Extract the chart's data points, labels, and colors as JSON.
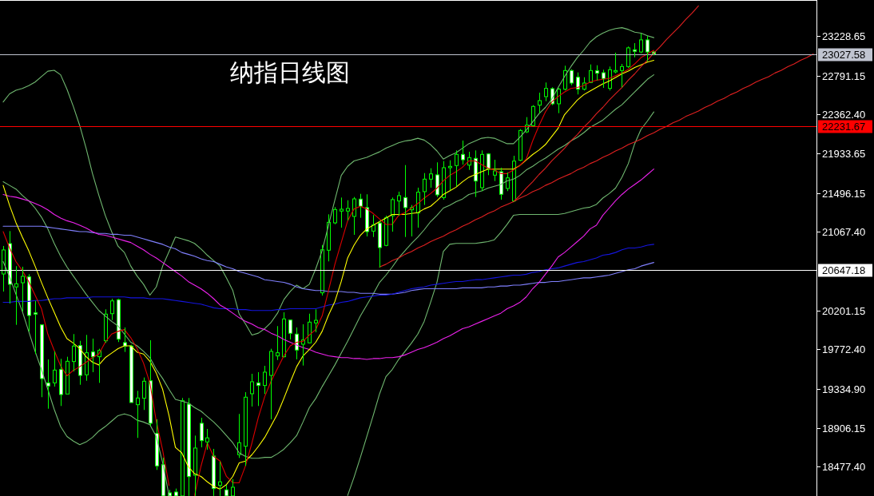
{
  "chart_data": {
    "type": "candlestick",
    "title": "纳指日线图",
    "categories": [
      null,
      null,
      null,
      null,
      null,
      null,
      null,
      null,
      null,
      null,
      null,
      null,
      null,
      null,
      null,
      null,
      null,
      null,
      null,
      null,
      null,
      null,
      null,
      null,
      null,
      null,
      null,
      null,
      null,
      null,
      null,
      null,
      null,
      null,
      null,
      null,
      null,
      null,
      null,
      null,
      null,
      null,
      null,
      null,
      null,
      null,
      null,
      null,
      null,
      null,
      null,
      null,
      null,
      null,
      null,
      null,
      null,
      null,
      null,
      null,
      null,
      null,
      null,
      null,
      null,
      null,
      null,
      null,
      null,
      null,
      null,
      null,
      null,
      null,
      null,
      null,
      null,
      null,
      null,
      null,
      null,
      null,
      null,
      null,
      null,
      null,
      null,
      null,
      null,
      null,
      null,
      null,
      null,
      null,
      null,
      null,
      null,
      null,
      null,
      null,
      null,
      null,
      null,
      null,
      null,
      null,
      null,
      null,
      null,
      null,
      null,
      null,
      null,
      null,
      null,
      null,
      null,
      null,
      null,
      null,
      null,
      null,
      null,
      null,
      null,
      null,
      null,
      null
    ],
    "color": "#00ff00",
    "ohlc": [
      [
        20603,
        20912,
        20409,
        20868
      ],
      [
        20938,
        21076,
        20277,
        20489
      ],
      [
        20460,
        20689,
        20042,
        20495
      ],
      [
        20506,
        20683,
        20189,
        20577
      ],
      [
        20571,
        20601,
        19969,
        20145
      ],
      [
        20174,
        20306,
        19720,
        20160
      ],
      [
        20042,
        20048,
        19244,
        19449
      ],
      [
        19402,
        19661,
        19117,
        19367
      ],
      [
        19402,
        19749,
        19361,
        19543
      ],
      [
        19549,
        19667,
        19147,
        19273
      ],
      [
        19279,
        19690,
        19279,
        19640
      ],
      [
        19637,
        19940,
        19528,
        19808
      ],
      [
        19813,
        19866,
        19381,
        19484
      ],
      [
        19491,
        19931,
        19425,
        19734
      ],
      [
        19743,
        19890,
        19520,
        19690
      ],
      [
        19690,
        19778,
        19402,
        19760
      ],
      [
        19866,
        20213,
        19843,
        20160
      ],
      [
        20165,
        20330,
        20095,
        20306
      ],
      [
        20319,
        20330,
        19852,
        19884
      ],
      [
        19846,
        20013,
        19743,
        19808
      ],
      [
        19808,
        19822,
        19185,
        19185
      ],
      [
        19161,
        19314,
        18795,
        19235
      ],
      [
        19232,
        19461,
        19103,
        19420
      ],
      [
        19425,
        19872,
        18927,
        18956
      ],
      [
        18844,
        19000,
        18442,
        18486
      ],
      [
        18500,
        18577,
        18155,
        18155
      ],
      [
        18189,
        18222,
        18155,
        18155
      ],
      [
        18198,
        18236,
        18155,
        18155
      ],
      [
        18155,
        19235,
        18155,
        19205
      ],
      [
        19167,
        19235,
        18155,
        18368
      ],
      [
        18383,
        18820,
        18155,
        18683
      ],
      [
        18956,
        19017,
        18691,
        18765
      ],
      [
        18750,
        18894,
        18665,
        18795
      ],
      [
        18595,
        18674,
        18155,
        18236
      ],
      [
        18271,
        18533,
        18155,
        18310
      ],
      [
        18222,
        18277,
        18155,
        18155
      ],
      [
        18155,
        18339,
        18155,
        18251
      ],
      [
        18610,
        19059,
        18574,
        18742
      ],
      [
        18703,
        19299,
        18486,
        19244
      ],
      [
        19282,
        19502,
        19141,
        19414
      ],
      [
        19402,
        19520,
        19147,
        19373
      ],
      [
        19373,
        19590,
        19279,
        19520
      ],
      [
        19484,
        19778,
        19000,
        19749
      ],
      [
        19699,
        20028,
        19654,
        19734
      ],
      [
        19690,
        20180,
        19684,
        20107
      ],
      [
        20095,
        20101,
        19881,
        19949
      ],
      [
        19940,
        20013,
        19661,
        19764
      ],
      [
        19828,
        20048,
        19593,
        19875
      ],
      [
        19843,
        20165,
        19837,
        20072
      ],
      [
        20063,
        20213,
        19960,
        20092
      ],
      [
        20395,
        20923,
        20365,
        20870
      ],
      [
        20865,
        21261,
        20742,
        21173
      ],
      [
        21167,
        21341,
        21152,
        21314
      ],
      [
        21297,
        21446,
        21114,
        21317
      ],
      [
        21297,
        21416,
        21194,
        21326
      ],
      [
        21238,
        21452,
        21035,
        21431
      ],
      [
        21429,
        21487,
        21223,
        21350
      ],
      [
        21335,
        21482,
        21017,
        21070
      ],
      [
        21076,
        21253,
        21011,
        21143
      ],
      [
        21165,
        21187,
        20674,
        20894
      ],
      [
        20918,
        21246,
        20909,
        21223
      ],
      [
        21246,
        21446,
        21070,
        21423
      ],
      [
        21408,
        21511,
        21246,
        21467
      ],
      [
        21446,
        21804,
        21011,
        21335
      ],
      [
        21311,
        21364,
        21017,
        21335
      ],
      [
        21276,
        21555,
        21114,
        21505
      ],
      [
        21511,
        21716,
        21364,
        21649
      ],
      [
        21649,
        21769,
        21555,
        21707
      ],
      [
        21696,
        21834,
        21452,
        21476
      ],
      [
        21446,
        21848,
        21423,
        21775
      ],
      [
        21775,
        21857,
        21526,
        21790
      ],
      [
        21799,
        21966,
        21570,
        21922
      ],
      [
        21922,
        22075,
        21810,
        21863
      ],
      [
        21804,
        21951,
        21751,
        21887
      ],
      [
        21878,
        21966,
        21452,
        21628
      ],
      [
        21555,
        21966,
        21517,
        21922
      ],
      [
        21927,
        21936,
        21693,
        21760
      ],
      [
        21693,
        21863,
        21628,
        21740
      ],
      [
        21731,
        21775,
        21423,
        21482
      ],
      [
        21546,
        21722,
        21517,
        21663
      ],
      [
        21408,
        21907,
        21399,
        21848
      ],
      [
        21857,
        22201,
        21848,
        22186
      ],
      [
        22171,
        22333,
        22157,
        22245
      ],
      [
        22239,
        22465,
        22231,
        22451
      ],
      [
        22465,
        22603,
        22377,
        22515
      ],
      [
        22559,
        22715,
        22509,
        22650
      ],
      [
        22647,
        22662,
        22465,
        22480
      ],
      [
        22480,
        22656,
        22377,
        22641
      ],
      [
        22641,
        22900,
        22627,
        22847
      ],
      [
        22847,
        22861,
        22685,
        22709
      ],
      [
        22773,
        22826,
        22583,
        22641
      ],
      [
        22641,
        22773,
        22627,
        22709
      ],
      [
        22715,
        22914,
        22709,
        22847
      ],
      [
        22844,
        22905,
        22738,
        22817
      ],
      [
        22823,
        22856,
        22656,
        22759
      ],
      [
        22650,
        22891,
        22627,
        22856
      ],
      [
        22832,
        23044,
        22817,
        22847
      ],
      [
        22847,
        22920,
        22662,
        22891
      ],
      [
        22891,
        23112,
        22876,
        23097
      ],
      [
        23076,
        23149,
        22993,
        23059
      ],
      [
        23052,
        23258,
        23038,
        23185
      ],
      [
        23185,
        23229,
        22949,
        23052
      ],
      [
        23052,
        23061,
        23015,
        23028
      ],
      null,
      null,
      null,
      null,
      null,
      null,
      null,
      null,
      null,
      null,
      null,
      null,
      null,
      null,
      null,
      null,
      null,
      null,
      null,
      null,
      null,
      null,
      null,
      null,
      null
    ],
    "series": [
      {
        "type": "line",
        "color": "#70b870",
        "values": [
          22500,
          22590,
          22630,
          22650,
          22680,
          22720,
          22780,
          22840,
          22850,
          22800,
          22640,
          22450,
          22240,
          21990,
          21710,
          21470,
          21250,
          21070,
          20910,
          20840,
          20690,
          20580,
          20490,
          20370,
          20460,
          20690,
          20850,
          21010,
          20990,
          20970,
          20940,
          20880,
          20810,
          20750,
          20690,
          20560,
          20420,
          20160,
          20050,
          19930,
          19950,
          20000,
          20070,
          20170,
          20320,
          20410,
          20480,
          20440,
          20490,
          20660,
          20860,
          21140,
          21420,
          21690,
          21790,
          21850,
          21870,
          21890,
          21920,
          21950,
          21990,
          22020,
          22050,
          22070,
          22080,
          22100,
          22080,
          22030,
          21960,
          21870,
          21910,
          21940,
          21990,
          22040,
          22070,
          22100,
          22110,
          22100,
          22070,
          22040,
          22040,
          22110,
          22190,
          22280,
          22370,
          22440,
          22530,
          22660,
          22780,
          22890,
          22990,
          23070,
          23160,
          23220,
          23260,
          23290,
          23310,
          23320,
          23300,
          23270,
          23260,
          23230,
          23210,
          null,
          null,
          null,
          null,
          null,
          null,
          null,
          null,
          null,
          null,
          null,
          null,
          null,
          null,
          null,
          null,
          null,
          null,
          null,
          null,
          null,
          null,
          null,
          null,
          null
        ]
      },
      {
        "type": "line",
        "color": "#70b870",
        "values": [
          21620,
          21580,
          21540,
          21470,
          21410,
          21330,
          21230,
          21100,
          20940,
          20800,
          20680,
          20580,
          20480,
          20380,
          20290,
          20200,
          20140,
          20080,
          20030,
          19940,
          19850,
          19810,
          19750,
          19680,
          19550,
          19450,
          19330,
          19220,
          19200,
          19180,
          19130,
          19090,
          19030,
          18970,
          18900,
          18820,
          18740,
          18630,
          18590,
          18570,
          18570,
          18580,
          18580,
          18620,
          18670,
          18740,
          18820,
          18970,
          19130,
          19230,
          19360,
          19480,
          19600,
          19730,
          19860,
          20000,
          20140,
          20260,
          20380,
          20510,
          20590,
          20680,
          20780,
          20860,
          20940,
          21010,
          21090,
          21180,
          21250,
          21330,
          21360,
          21400,
          21430,
          21480,
          21500,
          21520,
          21550,
          21570,
          21590,
          21630,
          21650,
          21690,
          21750,
          21790,
          21840,
          21880,
          21930,
          21980,
          22020,
          22070,
          22110,
          22160,
          22220,
          22260,
          22300,
          22360,
          22420,
          22470,
          22540,
          22610,
          22680,
          22750,
          22800,
          null,
          null,
          null,
          null,
          null,
          null,
          null,
          null,
          null,
          null,
          null,
          null,
          null,
          null,
          null,
          null,
          null,
          null,
          null,
          null,
          null,
          null,
          null,
          null,
          null
        ]
      },
      {
        "type": "line",
        "color": "#70b870",
        "values": [
          20740,
          20570,
          20380,
          20190,
          19970,
          19750,
          19550,
          19330,
          19110,
          18920,
          18810,
          18760,
          18720,
          18750,
          18800,
          18870,
          18920,
          18980,
          19040,
          19060,
          19040,
          18990,
          18970,
          18940,
          18810,
          18520,
          18160,
          null,
          null,
          null,
          null,
          null,
          null,
          null,
          null,
          null,
          null,
          null,
          null,
          null,
          null,
          null,
          null,
          null,
          null,
          null,
          null,
          null,
          null,
          null,
          null,
          null,
          null,
          null,
          18160,
          18360,
          18580,
          18810,
          19040,
          19280,
          19470,
          19550,
          19660,
          19750,
          19840,
          19940,
          20080,
          20290,
          20510,
          20850,
          20930,
          20940,
          20940,
          20940,
          20940,
          20950,
          20960,
          20980,
          21060,
          21150,
          21250,
          21260,
          21260,
          21260,
          21260,
          21260,
          21260,
          21260,
          21270,
          21290,
          21310,
          21330,
          21340,
          21370,
          21440,
          21490,
          21550,
          21670,
          21820,
          22040,
          22200,
          22290,
          22390,
          null,
          null,
          null,
          null,
          null,
          null,
          null,
          null,
          null,
          null,
          null,
          null,
          null,
          null,
          null,
          null,
          null,
          null,
          null,
          null,
          null,
          null,
          null,
          null,
          null
        ]
      },
      {
        "type": "line",
        "color": "#8080ff",
        "values": [
          21130,
          21130,
          21130,
          21130,
          21130,
          21130,
          21130,
          21120,
          21110,
          21100,
          21090,
          21080,
          21070,
          21070,
          21060,
          21050,
          21050,
          21040,
          21040,
          21030,
          21030,
          21010,
          20990,
          20970,
          20950,
          20930,
          20900,
          20880,
          20840,
          20820,
          20800,
          20770,
          20750,
          20740,
          20710,
          20680,
          20660,
          20630,
          20610,
          20590,
          20570,
          20540,
          20530,
          20520,
          20510,
          20490,
          20460,
          20440,
          20430,
          20420,
          20420,
          20410,
          20410,
          20410,
          20400,
          20400,
          20390,
          20390,
          20390,
          20380,
          20380,
          20380,
          20390,
          20400,
          20420,
          20430,
          20440,
          20440,
          20440,
          20440,
          20440,
          20440,
          20450,
          20450,
          20450,
          20450,
          20460,
          20460,
          20470,
          20470,
          20480,
          20480,
          20490,
          20500,
          20510,
          20510,
          20520,
          20520,
          20530,
          20540,
          20550,
          20560,
          20560,
          20570,
          20580,
          20590,
          20610,
          20630,
          20650,
          20660,
          20690,
          20710,
          20730,
          null,
          null,
          null,
          null,
          null,
          null,
          null,
          null,
          null,
          null,
          null,
          null,
          null,
          null,
          null,
          null,
          null,
          null,
          null,
          null,
          null,
          null,
          null,
          null,
          null
        ]
      },
      {
        "type": "line",
        "color": "#1515e0",
        "values": [
          20290,
          20290,
          20300,
          20300,
          20300,
          20310,
          20310,
          20320,
          20330,
          20330,
          20340,
          20340,
          20340,
          20340,
          20350,
          20350,
          20350,
          20350,
          20350,
          20350,
          20340,
          20340,
          20340,
          20330,
          20330,
          20330,
          20320,
          20310,
          20300,
          20290,
          20280,
          20270,
          20250,
          20230,
          20220,
          20220,
          20220,
          20210,
          20210,
          20200,
          20200,
          20200,
          20200,
          20210,
          20210,
          20220,
          20220,
          20220,
          20220,
          20220,
          20240,
          20260,
          20270,
          20290,
          20300,
          20320,
          20340,
          20350,
          20360,
          20370,
          20370,
          20380,
          20400,
          20420,
          20440,
          20450,
          20460,
          20480,
          20490,
          20500,
          20510,
          20520,
          20520,
          20530,
          20540,
          20540,
          20550,
          20560,
          20570,
          20580,
          20590,
          20590,
          20600,
          20620,
          20630,
          20650,
          20660,
          20670,
          20690,
          20710,
          20730,
          20740,
          20760,
          20780,
          20810,
          20820,
          20840,
          20870,
          20890,
          20890,
          20900,
          20920,
          20930,
          null,
          null,
          null,
          null,
          null,
          null,
          null,
          null,
          null,
          null,
          null,
          null,
          null,
          null,
          null,
          null,
          null,
          null,
          null,
          null,
          null,
          null,
          null,
          null,
          null
        ]
      },
      {
        "type": "line",
        "color": "#ee22ee",
        "values": [
          21480,
          21460,
          21450,
          21430,
          21410,
          21380,
          21350,
          21310,
          21260,
          21220,
          21190,
          21170,
          21140,
          21110,
          21070,
          21040,
          21030,
          21010,
          20990,
          20970,
          20950,
          20910,
          20870,
          20820,
          20780,
          20730,
          20680,
          20630,
          20580,
          20520,
          20480,
          20440,
          20390,
          20330,
          20260,
          20220,
          20170,
          20120,
          20080,
          20050,
          20010,
          19990,
          19950,
          19920,
          19880,
          19850,
          19820,
          19790,
          19770,
          19740,
          19720,
          19700,
          19690,
          19680,
          19680,
          19670,
          19670,
          19660,
          19670,
          19670,
          19680,
          19680,
          19690,
          19710,
          19740,
          19770,
          19790,
          19820,
          19850,
          19890,
          19920,
          19960,
          20000,
          20020,
          20050,
          20080,
          20110,
          20140,
          20170,
          20220,
          20250,
          20290,
          20350,
          20440,
          20510,
          20600,
          20690,
          20790,
          20840,
          20900,
          20960,
          21020,
          21100,
          21140,
          21250,
          21330,
          21410,
          21480,
          21540,
          21590,
          21640,
          21700,
          21760,
          null,
          null,
          null,
          null,
          null,
          null,
          null,
          null,
          null,
          null,
          null,
          null,
          null,
          null,
          null,
          null,
          null,
          null,
          null,
          null,
          null,
          null,
          null,
          null,
          null
        ]
      },
      {
        "type": "line",
        "color": "#ffff00",
        "values": [
          21580,
          21360,
          21170,
          21010,
          20860,
          20690,
          20510,
          20340,
          20180,
          20020,
          19890,
          19840,
          19780,
          19690,
          19630,
          19600,
          19680,
          19730,
          19780,
          19810,
          19810,
          19740,
          19720,
          19640,
          19510,
          19330,
          19040,
          18690,
          18630,
          18480,
          18400,
          18370,
          18310,
          18260,
          18230,
          18280,
          18370,
          18520,
          18540,
          18610,
          18700,
          18800,
          18930,
          19060,
          19230,
          19410,
          19580,
          19700,
          19770,
          19850,
          19970,
          20150,
          20300,
          20520,
          20780,
          20920,
          21030,
          21100,
          21140,
          21180,
          21220,
          21260,
          21260,
          21260,
          21270,
          21280,
          21320,
          21350,
          21410,
          21480,
          21520,
          21560,
          21620,
          21670,
          21700,
          21730,
          21760,
          21760,
          21760,
          21760,
          21760,
          21800,
          21860,
          21920,
          21970,
          22030,
          22120,
          22210,
          22360,
          22440,
          22520,
          22580,
          22620,
          22660,
          22700,
          22730,
          22770,
          22810,
          22840,
          22880,
          22910,
          22940,
          22960,
          null,
          null,
          null,
          null,
          null,
          null,
          null,
          null,
          null,
          null,
          null,
          null,
          null,
          null,
          null,
          null,
          null,
          null,
          null,
          null,
          null,
          null,
          null,
          null,
          null
        ]
      },
      {
        "type": "line",
        "color": "#dd0000",
        "values": [
          21070,
          20890,
          20740,
          20640,
          20520,
          20370,
          20220,
          19940,
          19760,
          19590,
          19480,
          19540,
          19580,
          19630,
          19680,
          19720,
          19850,
          19940,
          19970,
          19990,
          19900,
          19780,
          19620,
          19400,
          18980,
          18660,
          18270,
          null,
          null,
          null,
          18160,
          18480,
          18740,
          18590,
          18540,
          18370,
          18300,
          18300,
          18490,
          18740,
          19020,
          19250,
          19420,
          19560,
          19700,
          19810,
          19850,
          19860,
          19930,
          19990,
          20140,
          20420,
          20710,
          20950,
          21190,
          21320,
          21350,
          21320,
          21270,
          21210,
          21150,
          21150,
          21250,
          21280,
          21330,
          21380,
          21440,
          21490,
          21550,
          21630,
          21690,
          21730,
          21780,
          21850,
          21850,
          21810,
          21770,
          21750,
          21710,
          21710,
          21750,
          21800,
          21870,
          22070,
          22240,
          22390,
          22500,
          22560,
          22610,
          22650,
          22660,
          22680,
          22720,
          22740,
          22750,
          22760,
          22790,
          22820,
          22860,
          22920,
          22990,
          23030,
          23070,
          null,
          null,
          null,
          null,
          null,
          null,
          null,
          null,
          null,
          null,
          null,
          null,
          null,
          null,
          null,
          null,
          null,
          null,
          null,
          null,
          null,
          null,
          null,
          null,
          null
        ]
      },
      {
        "type": "line",
        "color": "#e02020",
        "values": [
          null,
          null,
          null,
          null,
          null,
          null,
          null,
          null,
          null,
          null,
          null,
          null,
          null,
          null,
          null,
          null,
          null,
          null,
          null,
          null,
          null,
          null,
          null,
          null,
          null,
          null,
          null,
          null,
          null,
          null,
          null,
          null,
          null,
          null,
          null,
          null,
          null,
          null,
          null,
          null,
          null,
          null,
          null,
          null,
          null,
          null,
          null,
          null,
          null,
          null,
          null,
          null,
          null,
          null,
          null,
          null,
          null,
          null,
          null,
          20680,
          20710,
          20750,
          20780,
          20820,
          20850,
          20890,
          20920,
          20960,
          20990,
          21020,
          21060,
          21090,
          21130,
          21160,
          21200,
          21230,
          21270,
          21300,
          21340,
          21370,
          21400,
          21440,
          21470,
          21510,
          21540,
          21580,
          21610,
          21650,
          21680,
          21710,
          21750,
          21780,
          21820,
          21850,
          21890,
          21920,
          21960,
          21990,
          22030,
          22060,
          22090,
          22130,
          22160,
          22200,
          22230,
          22270,
          22300,
          22340,
          22370,
          22400,
          22440,
          22470,
          22510,
          22540,
          22580,
          22610,
          22650,
          22680,
          22720,
          22750,
          22780,
          22820,
          22850,
          22890,
          22920,
          22960,
          22990,
          23030
        ]
      },
      {
        "type": "line",
        "color": "#e02020",
        "values": [
          null,
          null,
          null,
          null,
          null,
          null,
          null,
          null,
          null,
          null,
          null,
          null,
          null,
          null,
          null,
          null,
          null,
          null,
          null,
          null,
          null,
          null,
          null,
          null,
          null,
          null,
          null,
          null,
          null,
          null,
          null,
          null,
          null,
          null,
          null,
          null,
          null,
          null,
          null,
          null,
          null,
          null,
          null,
          null,
          null,
          null,
          null,
          null,
          null,
          null,
          null,
          null,
          null,
          null,
          null,
          null,
          null,
          null,
          null,
          null,
          null,
          null,
          null,
          null,
          null,
          null,
          null,
          null,
          null,
          null,
          null,
          null,
          null,
          null,
          null,
          null,
          null,
          null,
          null,
          null,
          21400,
          21470,
          21550,
          21620,
          21700,
          21770,
          21850,
          21920,
          21990,
          22070,
          22140,
          22220,
          22290,
          22370,
          22440,
          22520,
          22590,
          22660,
          22740,
          22810,
          22890,
          22960,
          23040,
          23110,
          23190,
          23260,
          23330,
          23410,
          23480,
          23560,
          null,
          null,
          null,
          null,
          null,
          null,
          null,
          null,
          null,
          null,
          null,
          null,
          null,
          null,
          null,
          null,
          null,
          null
        ]
      }
    ],
    "ylim": [
      18154,
      23625
    ],
    "yticks": [
      {
        "value": 18477.4,
        "label": "18477.40"
      },
      18906.15,
      {
        "value": 19334.9,
        "label": "19334.90"
      },
      {
        "value": 19772.4,
        "label": "19772.40"
      },
      20201.15,
      {
        "value": 21067.4,
        "label": "21067.40"
      },
      21496.15,
      21933.65,
      {
        "value": 22362.4,
        "label": "22362.40"
      },
      22791.15,
      23228.65
    ],
    "ref_lines": [
      {
        "axis": "y",
        "value": 23027.58,
        "label": "23027.58",
        "color": "#c0c4d0"
      },
      {
        "axis": "y",
        "value": 22231.67,
        "label": "22231.67",
        "color": "#ff0000"
      },
      {
        "axis": "y",
        "value": 20647.18,
        "label": "20647.18",
        "color": "#ffffff"
      }
    ]
  }
}
